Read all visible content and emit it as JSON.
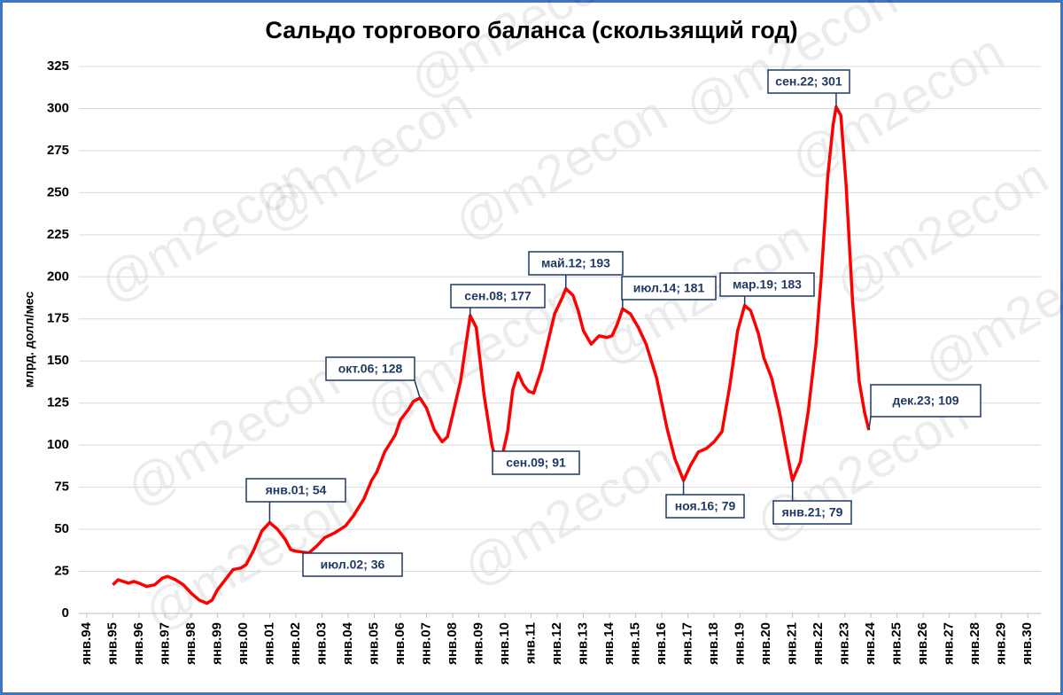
{
  "chart_data": {
    "type": "line",
    "title": "Сальдо торгового баланса (скользящий год)",
    "y_label": "млрд. долл/мес",
    "watermark": "@m2econ",
    "ylim": [
      0,
      325
    ],
    "yticks": [
      0,
      25,
      50,
      75,
      100,
      125,
      150,
      175,
      200,
      225,
      250,
      275,
      300,
      325
    ],
    "grid": true,
    "xlim": [
      1993.7,
      2030.5
    ],
    "xticks": [
      {
        "value": 1994,
        "label": "янв.94"
      },
      {
        "value": 1995,
        "label": "янв.95"
      },
      {
        "value": 1996,
        "label": "янв.96"
      },
      {
        "value": 1997,
        "label": "янв.97"
      },
      {
        "value": 1998,
        "label": "янв.98"
      },
      {
        "value": 1999,
        "label": "янв.99"
      },
      {
        "value": 2000,
        "label": "янв.00"
      },
      {
        "value": 2001,
        "label": "янв.01"
      },
      {
        "value": 2002,
        "label": "янв.02"
      },
      {
        "value": 2003,
        "label": "янв.03"
      },
      {
        "value": 2004,
        "label": "янв.04"
      },
      {
        "value": 2005,
        "label": "янв.05"
      },
      {
        "value": 2006,
        "label": "янв.06"
      },
      {
        "value": 2007,
        "label": "янв.07"
      },
      {
        "value": 2008,
        "label": "янв.08"
      },
      {
        "value": 2009,
        "label": "янв.09"
      },
      {
        "value": 2010,
        "label": "янв.10"
      },
      {
        "value": 2011,
        "label": "янв.11"
      },
      {
        "value": 2012,
        "label": "янв.12"
      },
      {
        "value": 2013,
        "label": "янв.13"
      },
      {
        "value": 2014,
        "label": "янв.14"
      },
      {
        "value": 2015,
        "label": "янв.15"
      },
      {
        "value": 2016,
        "label": "янв.16"
      },
      {
        "value": 2017,
        "label": "янв.17"
      },
      {
        "value": 2018,
        "label": "янв.18"
      },
      {
        "value": 2019,
        "label": "янв.19"
      },
      {
        "value": 2020,
        "label": "янв.20"
      },
      {
        "value": 2021,
        "label": "янв.21"
      },
      {
        "value": 2022,
        "label": "янв.22"
      },
      {
        "value": 2023,
        "label": "янв.23"
      },
      {
        "value": 2024,
        "label": "янв.24"
      },
      {
        "value": 2025,
        "label": "янв.25"
      },
      {
        "value": 2026,
        "label": "янв.26"
      },
      {
        "value": 2027,
        "label": "янв.27"
      },
      {
        "value": 2028,
        "label": "янв.28"
      },
      {
        "value": 2029,
        "label": "янв.29"
      },
      {
        "value": 2030,
        "label": "янв.30"
      }
    ],
    "x": [
      1995.0,
      1995.2,
      1995.4,
      1995.6,
      1995.8,
      1996.0,
      1996.3,
      1996.6,
      1996.9,
      1997.1,
      1997.4,
      1997.7,
      1998.0,
      1998.3,
      1998.6,
      1998.8,
      1999.0,
      1999.3,
      1999.6,
      1999.9,
      2000.1,
      2000.4,
      2000.7,
      2001.0,
      2001.3,
      2001.6,
      2001.8,
      2002.0,
      2002.5,
      2002.8,
      2003.1,
      2003.5,
      2003.9,
      2004.2,
      2004.6,
      2004.9,
      2005.1,
      2005.4,
      2005.8,
      2006.0,
      2006.3,
      2006.5,
      2006.75,
      2007.0,
      2007.3,
      2007.6,
      2007.8,
      2008.0,
      2008.3,
      2008.67,
      2008.9,
      2009.2,
      2009.5,
      2009.67,
      2009.9,
      2010.1,
      2010.3,
      2010.5,
      2010.7,
      2010.9,
      2011.1,
      2011.4,
      2011.7,
      2011.9,
      2012.2,
      2012.33,
      2012.6,
      2012.8,
      2013.0,
      2013.3,
      2013.6,
      2013.9,
      2014.1,
      2014.3,
      2014.5,
      2014.8,
      2015.1,
      2015.4,
      2015.8,
      2016.2,
      2016.5,
      2016.83,
      2017.1,
      2017.4,
      2017.7,
      2018.0,
      2018.3,
      2018.6,
      2018.9,
      2019.17,
      2019.4,
      2019.7,
      2019.9,
      2020.2,
      2020.5,
      2020.8,
      2021.0,
      2021.3,
      2021.6,
      2021.9,
      2022.1,
      2022.35,
      2022.55,
      2022.67,
      2022.85,
      2023.05,
      2023.3,
      2023.55,
      2023.75,
      2023.92
    ],
    "series": [
      {
        "name": "Сальдо торгового баланса",
        "color": "#ff0000",
        "values": [
          17,
          20,
          19,
          18,
          19,
          18,
          16,
          17,
          21,
          22,
          20,
          17,
          12,
          8,
          6,
          8,
          14,
          20,
          26,
          27,
          29,
          38,
          49,
          54,
          50,
          44,
          38,
          37,
          36,
          40,
          45,
          48,
          52,
          58,
          68,
          79,
          84,
          96,
          106,
          115,
          121,
          126,
          128,
          122,
          109,
          102,
          105,
          118,
          138,
          177,
          170,
          130,
          100,
          91,
          94,
          108,
          133,
          143,
          136,
          132,
          131,
          145,
          165,
          178,
          188,
          193,
          189,
          180,
          168,
          160,
          165,
          164,
          165,
          172,
          181,
          178,
          170,
          160,
          140,
          110,
          92,
          79,
          88,
          96,
          98,
          102,
          108,
          135,
          168,
          183,
          180,
          166,
          152,
          140,
          120,
          95,
          79,
          90,
          120,
          160,
          200,
          260,
          290,
          301,
          296,
          255,
          185,
          138,
          120,
          109
        ]
      }
    ],
    "annotations": [
      {
        "label": "янв.01; 54",
        "x": 2001.0,
        "y": 54
      },
      {
        "label": "июл.02; 36",
        "x": 2002.5,
        "y": 36
      },
      {
        "label": "окт.06; 128",
        "x": 2006.75,
        "y": 128
      },
      {
        "label": "сен.08; 177",
        "x": 2008.67,
        "y": 177
      },
      {
        "label": "сен.09; 91",
        "x": 2009.67,
        "y": 91
      },
      {
        "label": "май.12; 193",
        "x": 2012.33,
        "y": 193
      },
      {
        "label": "июл.14; 181",
        "x": 2014.5,
        "y": 181
      },
      {
        "label": "ноя.16; 79",
        "x": 2016.83,
        "y": 79
      },
      {
        "label": "мар.19; 183",
        "x": 2019.17,
        "y": 183
      },
      {
        "label": "янв.21; 79",
        "x": 2021.0,
        "y": 79
      },
      {
        "label": "сен.22; 301",
        "x": 2022.67,
        "y": 301
      },
      {
        "label": "дек.23; 109",
        "x": 2023.92,
        "y": 109
      }
    ]
  }
}
